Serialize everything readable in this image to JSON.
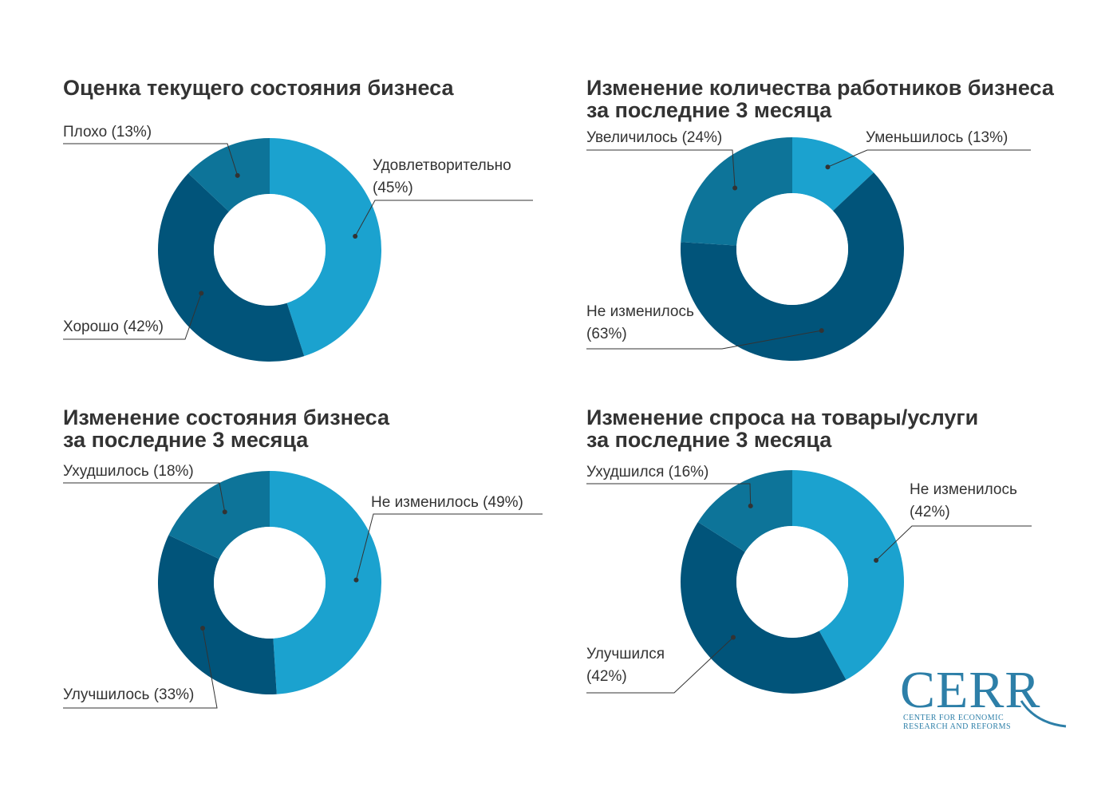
{
  "colors": {
    "light": "#1ba2cf",
    "medium": "#0d7499",
    "dark": "#01547a",
    "leader": "#333333",
    "logo": "#2d7fa8"
  },
  "chart_data": [
    {
      "type": "pie",
      "title_lines": [
        "Оценка текущего состояния бизнеса"
      ],
      "slices": [
        {
          "label_lines": [
            "Удовлетворительно",
            "(45%)"
          ],
          "value": 45,
          "color": "light"
        },
        {
          "label_lines": [
            "Хорошо (42%)"
          ],
          "value": 42,
          "color": "dark"
        },
        {
          "label_lines": [
            "Плохо (13%)"
          ],
          "value": 13,
          "color": "medium"
        }
      ]
    },
    {
      "type": "pie",
      "title_lines": [
        "Изменение количества работников бизнеса",
        "за последние 3 месяца"
      ],
      "slices": [
        {
          "label_lines": [
            "Уменьшилось (13%)"
          ],
          "value": 13,
          "color": "light"
        },
        {
          "label_lines": [
            "Не изменилось",
            "(63%)"
          ],
          "value": 63,
          "color": "dark"
        },
        {
          "label_lines": [
            "Увеличилось (24%)"
          ],
          "value": 24,
          "color": "medium"
        }
      ]
    },
    {
      "type": "pie",
      "title_lines": [
        "Изменение состояния бизнеса",
        "за последние 3 месяца"
      ],
      "slices": [
        {
          "label_lines": [
            "Не изменилось (49%)"
          ],
          "value": 49,
          "color": "light"
        },
        {
          "label_lines": [
            "Улучшилось (33%)"
          ],
          "value": 33,
          "color": "dark"
        },
        {
          "label_lines": [
            "Ухудшилось (18%)"
          ],
          "value": 18,
          "color": "medium"
        }
      ]
    },
    {
      "type": "pie",
      "title_lines": [
        "Изменение спроса на товары/услуги",
        "за последние 3 месяца"
      ],
      "slices": [
        {
          "label_lines": [
            "Не изменилось",
            "(42%)"
          ],
          "value": 42,
          "color": "light"
        },
        {
          "label_lines": [
            "Улучшился",
            "(42%)"
          ],
          "value": 42,
          "color": "dark"
        },
        {
          "label_lines": [
            "Ухудшился (16%)"
          ],
          "value": 16,
          "color": "medium"
        }
      ]
    }
  ],
  "logo": {
    "word": "CERR",
    "sub_lines": [
      "CENTER FOR ECONOMIC",
      "RESEARCH AND REFORMS"
    ]
  }
}
